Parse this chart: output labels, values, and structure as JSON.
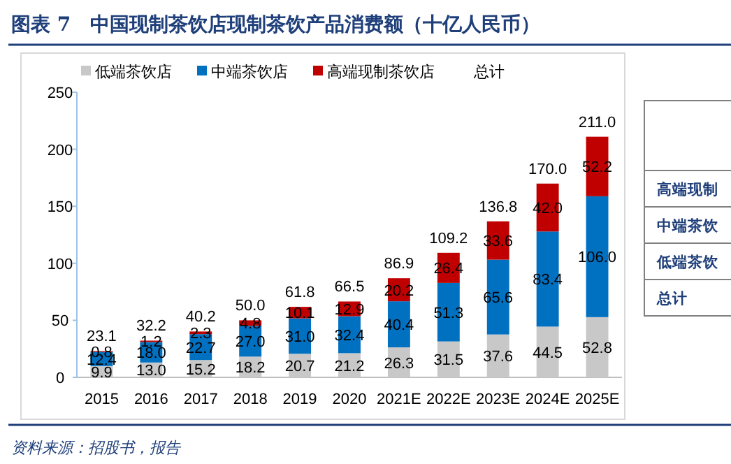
{
  "chart_data": {
    "type": "bar",
    "stacked": true,
    "title": "图表 7　中国现制茶饮店现制茶饮产品消费额（十亿人民币）",
    "categories": [
      "2015",
      "2016",
      "2017",
      "2018",
      "2019",
      "2020",
      "2021E",
      "2022E",
      "2023E",
      "2024E",
      "2025E"
    ],
    "series": [
      {
        "name": "低端茶饮店",
        "color": "#c8c8c8",
        "values": [
          9.9,
          13.0,
          15.2,
          18.2,
          20.7,
          21.2,
          26.3,
          31.5,
          37.6,
          44.5,
          52.8
        ],
        "value_labels": [
          "9.9",
          "13.0",
          "15.2",
          "18.2",
          "20.7",
          "21.2",
          "26.3",
          "31.5",
          "37.6",
          "44.5",
          "52.8"
        ]
      },
      {
        "name": "中端茶饮店",
        "color": "#0070c0",
        "values": [
          12.4,
          18.0,
          22.7,
          27.0,
          31.0,
          32.4,
          40.4,
          51.3,
          65.6,
          83.4,
          106.0
        ],
        "value_labels": [
          "12.4",
          "18.0",
          "22.7",
          "27.0",
          "31.0",
          "32.4",
          "40.4",
          "51.3",
          "65.6",
          "83.4",
          "106.0"
        ]
      },
      {
        "name": "高端现制茶饮店",
        "color": "#c00000",
        "values": [
          0.8,
          1.2,
          2.3,
          4.8,
          10.1,
          12.9,
          20.2,
          26.4,
          33.6,
          42.0,
          52.2
        ],
        "value_labels": [
          "0.8",
          "1.2",
          "2.3",
          "4.8",
          "10.1",
          "12.9",
          "20.2",
          "26.4",
          "33.6",
          "42.0",
          "52.2"
        ]
      }
    ],
    "totals": [
      "23.1",
      "32.2",
      "40.2",
      "50.0",
      "61.8",
      "66.5",
      "86.9",
      "109.2",
      "136.8",
      "170.0",
      "211.0"
    ],
    "ylim": [
      0,
      250
    ],
    "yticks": [
      0,
      50,
      100,
      150,
      200,
      250
    ],
    "grid": false,
    "legend": "top",
    "annotations": [
      "总计",
      "高端现制",
      "中端茶饮",
      "低端茶饮",
      "总计",
      "资料来源：招股书，报告"
    ]
  }
}
